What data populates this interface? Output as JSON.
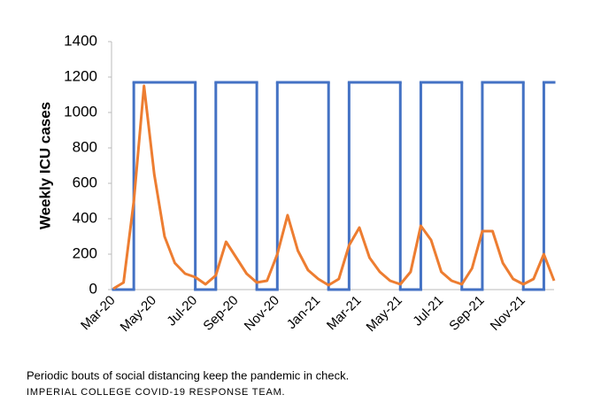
{
  "chart_data": {
    "type": "line",
    "y_label": "Weekly ICU cases",
    "caption": "Periodic bouts of social distancing keep the pandemic in check.",
    "source": "IMPERIAL COLLEGE COVID-19 RESPONSE TEAM.",
    "categories": [
      "Mar-20",
      null,
      null,
      null,
      "May-20",
      null,
      null,
      null,
      "Jul-20",
      null,
      null,
      null,
      "Sep-20",
      null,
      null,
      null,
      "Nov-20",
      null,
      null,
      null,
      "Jan-21",
      null,
      null,
      null,
      "Mar-21",
      null,
      null,
      null,
      "May-21",
      null,
      null,
      null,
      "Jul-21",
      null,
      null,
      null,
      "Sep-21",
      null,
      null,
      null,
      "Nov-21",
      null,
      null,
      null
    ],
    "series": [
      {
        "color": "#4472c4",
        "step": true,
        "values": [
          0,
          0,
          1170,
          1170,
          1170,
          1170,
          1170,
          1170,
          0,
          0,
          1170,
          1170,
          1170,
          1170,
          0,
          0,
          1170,
          1170,
          1170,
          1170,
          1170,
          0,
          0,
          1170,
          1170,
          1170,
          1170,
          1170,
          0,
          0,
          1170,
          1170,
          1170,
          1170,
          0,
          0,
          1170,
          1170,
          1170,
          1170,
          0,
          0,
          1170,
          1170
        ]
      },
      {
        "color": "#ed7d31",
        "step": false,
        "values": [
          5,
          40,
          500,
          1150,
          650,
          300,
          150,
          90,
          70,
          30,
          80,
          270,
          180,
          90,
          40,
          50,
          200,
          420,
          220,
          110,
          60,
          25,
          60,
          250,
          350,
          180,
          100,
          50,
          30,
          100,
          360,
          280,
          100,
          50,
          30,
          120,
          330,
          330,
          150,
          60,
          30,
          60,
          200,
          50
        ]
      }
    ],
    "ylim": [
      0,
      1400
    ],
    "yticks": [
      0,
      200,
      400,
      600,
      800,
      1000,
      1200,
      1400
    ],
    "grid": false
  }
}
